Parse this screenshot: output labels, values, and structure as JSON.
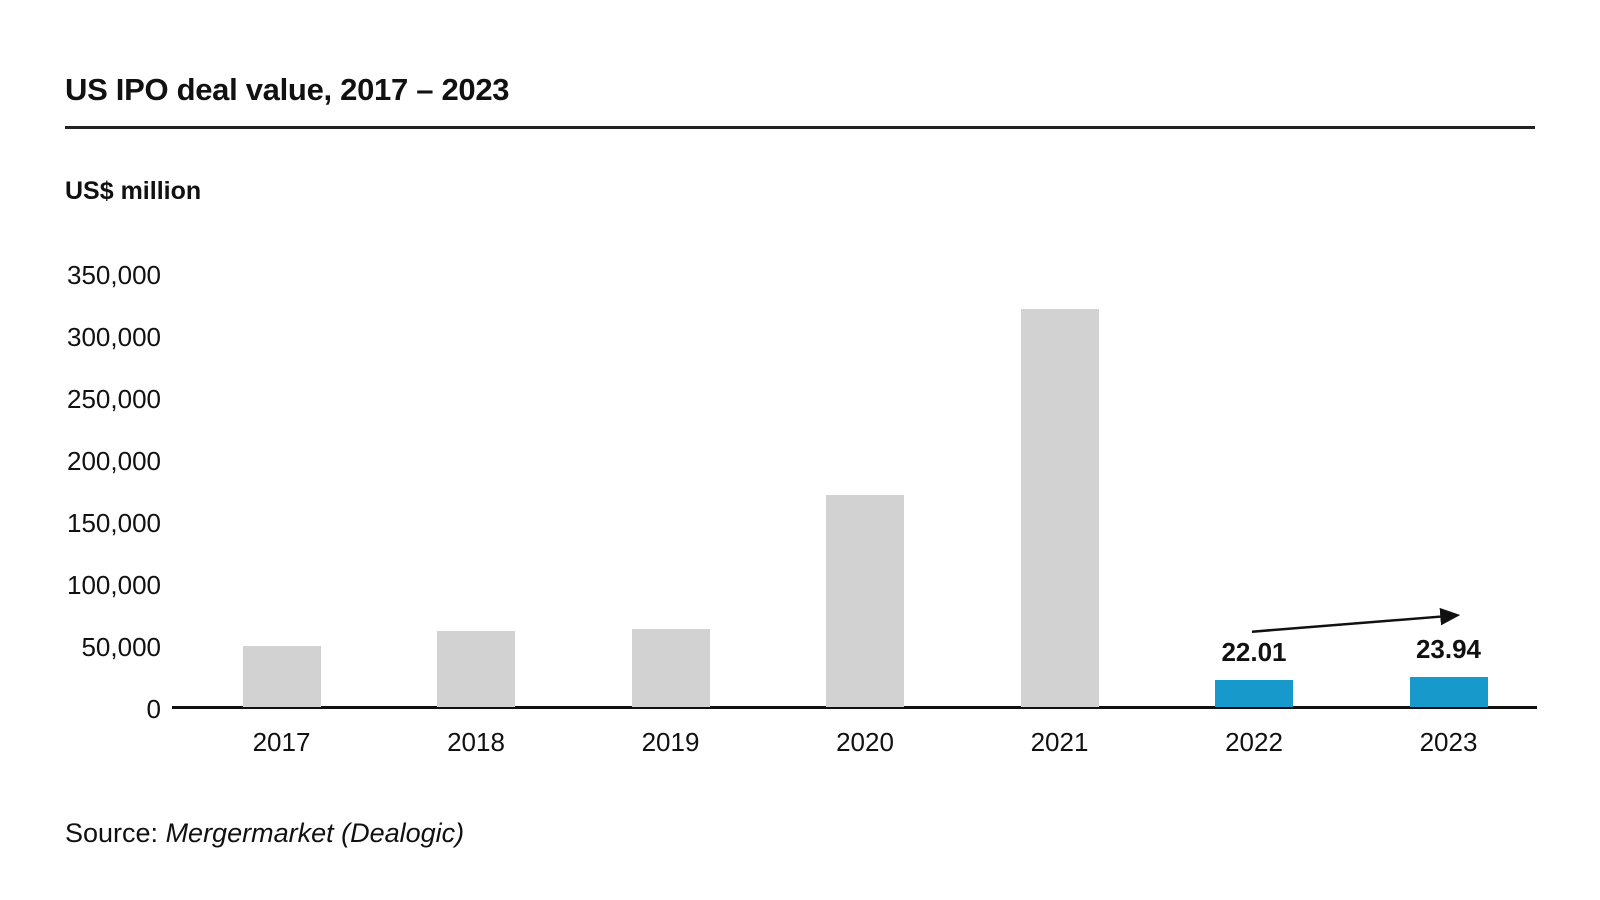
{
  "chart_data": {
    "type": "bar",
    "title": "US IPO deal value, 2017 – 2023",
    "unit_label": "US$ million",
    "categories": [
      "2017",
      "2018",
      "2019",
      "2020",
      "2021",
      "2022",
      "2023"
    ],
    "values": [
      49500,
      61000,
      63000,
      171000,
      321000,
      22010,
      23940
    ],
    "bar_labels": [
      null,
      null,
      null,
      null,
      null,
      "22.01",
      "23.94"
    ],
    "highlighted": [
      false,
      false,
      false,
      false,
      false,
      true,
      true
    ],
    "colors": {
      "bar_default": "#d2d2d2",
      "bar_highlight": "#1799cc",
      "axis": "#111111",
      "text": "#111111"
    },
    "ylim": [
      0,
      350000
    ],
    "yticks": [
      0,
      50000,
      100000,
      150000,
      200000,
      250000,
      300000,
      350000
    ],
    "ytick_labels": [
      "0",
      "50,000",
      "100,000",
      "150,000",
      "200,000",
      "250,000",
      "300,000",
      "350,000"
    ],
    "grid": false,
    "legend": "none",
    "annotation": {
      "type": "trend-arrow",
      "from_category": "2022",
      "to_category": "2023",
      "direction": "up-right"
    }
  },
  "source": {
    "prefix": "Source: ",
    "text": "Mergermarket (Dealogic)"
  }
}
